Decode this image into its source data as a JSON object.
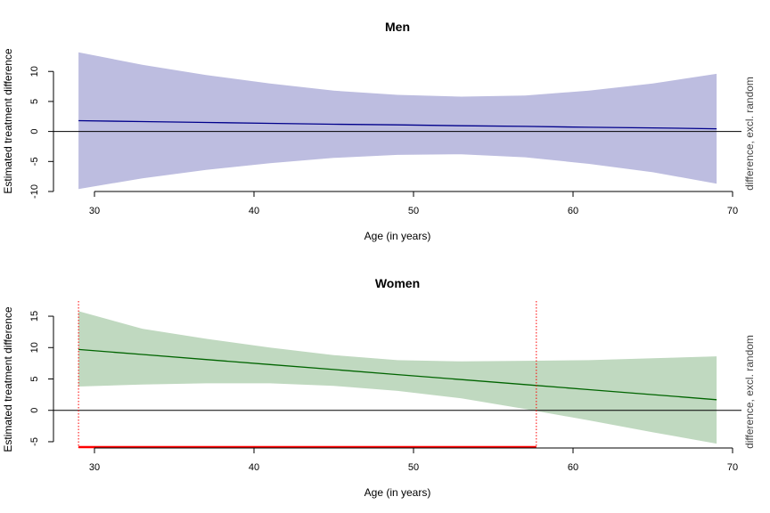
{
  "chart_data": [
    {
      "type": "area",
      "title": "Men",
      "xlabel": "Age (in years)",
      "ylabel": "Estimated treatment difference",
      "right_label": "difference, excl. random",
      "xlim": [
        29,
        69
      ],
      "ylim": [
        -10,
        13
      ],
      "x_ticks": [
        30,
        40,
        50,
        60,
        70
      ],
      "y_ticks": [
        -10,
        -5,
        0,
        5,
        10
      ],
      "x": [
        29,
        33,
        37,
        41,
        45,
        49,
        53,
        57,
        61,
        65,
        69
      ],
      "estimate": [
        1.8,
        1.65,
        1.5,
        1.35,
        1.2,
        1.1,
        0.95,
        0.85,
        0.7,
        0.6,
        0.45
      ],
      "lower": [
        -9.6,
        -7.8,
        -6.4,
        -5.3,
        -4.4,
        -3.9,
        -3.8,
        -4.3,
        -5.4,
        -6.8,
        -8.7
      ],
      "upper": [
        13.2,
        11.1,
        9.4,
        8.0,
        6.8,
        6.1,
        5.8,
        6.0,
        6.8,
        8.0,
        9.6
      ],
      "band_color": "#bdbde0",
      "line_color": "#00008b",
      "zero_line": true
    },
    {
      "type": "area",
      "title": "Women",
      "xlabel": "Age (in years)",
      "ylabel": "Estimated treatment difference",
      "right_label": "difference, excl. random",
      "xlim": [
        29,
        69
      ],
      "ylim": [
        -6,
        16
      ],
      "x_ticks": [
        30,
        40,
        50,
        60,
        70
      ],
      "y_ticks": [
        -5,
        0,
        5,
        10,
        15
      ],
      "x": [
        29,
        33,
        37,
        41,
        45,
        49,
        53,
        57,
        61,
        65,
        69
      ],
      "estimate": [
        9.7,
        8.9,
        8.1,
        7.3,
        6.5,
        5.7,
        4.9,
        4.1,
        3.3,
        2.5,
        1.7
      ],
      "lower": [
        3.8,
        4.1,
        4.3,
        4.3,
        3.9,
        3.1,
        1.9,
        0.2,
        -1.6,
        -3.5,
        -5.3
      ],
      "upper": [
        15.8,
        13.0,
        11.4,
        10.0,
        8.8,
        8.0,
        7.8,
        7.9,
        8.0,
        8.3,
        8.6
      ],
      "band_color": "#c0d9c0",
      "line_color": "#006400",
      "zero_line": true,
      "significance_region": {
        "from": 29,
        "to": 57.7,
        "color": "#ff0000"
      }
    }
  ]
}
